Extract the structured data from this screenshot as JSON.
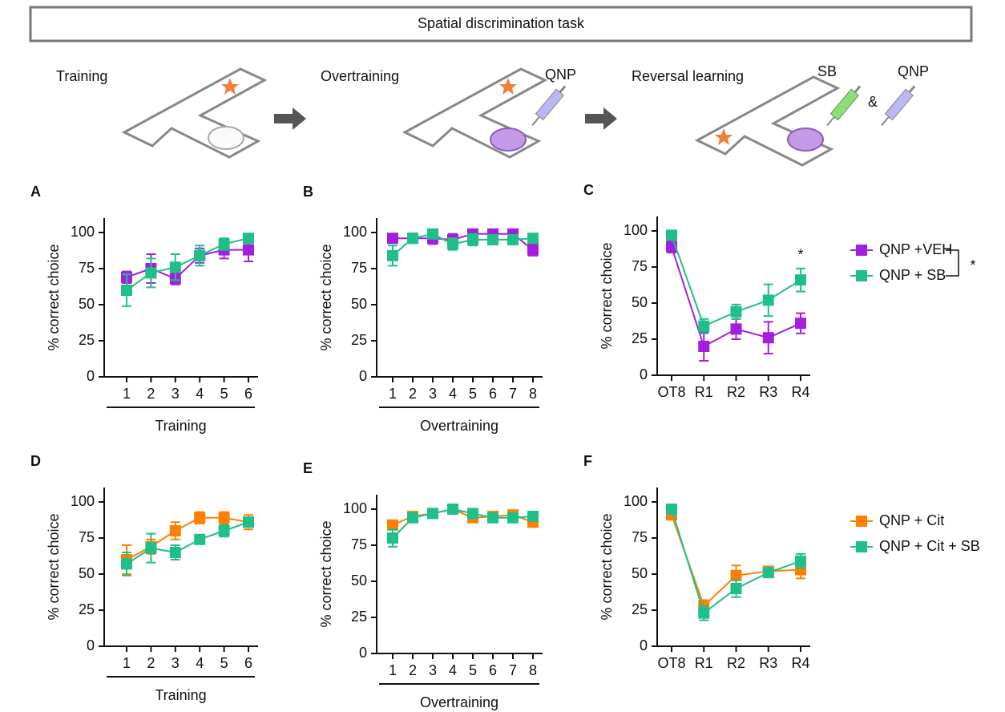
{
  "schematic": {
    "title": "Spatial discrimination task",
    "stages": [
      {
        "label": "Training"
      },
      {
        "label": "Overtraining",
        "drug": "QNP"
      },
      {
        "label": "Reversal learning",
        "drugs": [
          "SB",
          "&",
          "QNP"
        ]
      }
    ]
  },
  "chart_data": [
    {
      "type": "line",
      "panel": "A",
      "ylabel": "% correct choice",
      "xlabel": "Training",
      "categories": [
        "1",
        "2",
        "3",
        "4",
        "5",
        "6"
      ],
      "ylim": [
        0,
        110
      ],
      "yticks": [
        0,
        25,
        50,
        75,
        100
      ],
      "series": [
        {
          "color": "#a21fe0",
          "values": [
            69,
            75,
            68,
            84,
            88,
            88
          ],
          "errors": [
            4,
            10,
            4,
            5,
            6,
            8
          ]
        },
        {
          "color": "#1fbf8a",
          "values": [
            60,
            72,
            76,
            84,
            92,
            96
          ],
          "errors": [
            11,
            10,
            9,
            7,
            4,
            3
          ]
        }
      ]
    },
    {
      "type": "line",
      "panel": "B",
      "ylabel": "% correct choice",
      "xlabel": "Overtraining",
      "categories": [
        "1",
        "2",
        "3",
        "4",
        "5",
        "6",
        "7",
        "8"
      ],
      "ylim": [
        0,
        110
      ],
      "yticks": [
        0,
        25,
        50,
        75,
        100
      ],
      "series": [
        {
          "color": "#a21fe0",
          "values": [
            96,
            96,
            96,
            95,
            99,
            99,
            99,
            88
          ],
          "errors": [
            3,
            3,
            4,
            4,
            3,
            3,
            3,
            4
          ]
        },
        {
          "color": "#1fbf8a",
          "values": [
            84,
            96,
            99,
            92,
            95,
            95,
            95,
            96
          ],
          "errors": [
            7,
            3,
            3,
            4,
            4,
            3,
            3,
            3
          ]
        }
      ]
    },
    {
      "type": "line",
      "panel": "C",
      "ylabel": "% correct choice",
      "categories": [
        "OT8",
        "R1",
        "R2",
        "R3",
        "R4"
      ],
      "ylim": [
        0,
        110
      ],
      "yticks": [
        0,
        25,
        50,
        75,
        100
      ],
      "annotation": "*",
      "legend": "right",
      "legend_annotation": "*",
      "series": [
        {
          "name": "QNP +VEH",
          "color": "#a21fe0",
          "values": [
            89,
            20,
            32,
            26,
            36
          ],
          "errors": [
            4,
            10,
            7,
            11,
            7
          ]
        },
        {
          "name": "QNP + SB",
          "color": "#1fbf8a",
          "values": [
            97,
            34,
            44,
            52,
            66
          ],
          "errors": [
            3,
            5,
            5,
            11,
            8
          ]
        }
      ]
    },
    {
      "type": "line",
      "panel": "D",
      "ylabel": "% correct choice",
      "xlabel": "Training",
      "categories": [
        "1",
        "2",
        "3",
        "4",
        "5",
        "6"
      ],
      "ylim": [
        0,
        110
      ],
      "yticks": [
        0,
        25,
        50,
        75,
        100
      ],
      "series": [
        {
          "color": "#ff8000",
          "values": [
            60,
            69,
            80,
            89,
            89,
            86
          ],
          "errors": [
            10,
            5,
            6,
            4,
            4,
            5
          ]
        },
        {
          "color": "#1fbf8a",
          "values": [
            57,
            68,
            65,
            74,
            80,
            86
          ],
          "errors": [
            8,
            10,
            5,
            3,
            4,
            3
          ]
        }
      ]
    },
    {
      "type": "line",
      "panel": "E",
      "ylabel": "% correct choice",
      "xlabel": "Overtraining",
      "categories": [
        "1",
        "2",
        "3",
        "4",
        "5",
        "6",
        "7",
        "8"
      ],
      "ylim": [
        0,
        110
      ],
      "yticks": [
        0,
        25,
        50,
        75,
        100
      ],
      "series": [
        {
          "color": "#ff8000",
          "values": [
            89,
            95,
            97,
            100,
            94,
            95,
            96,
            91
          ],
          "errors": [
            3,
            2,
            2,
            1,
            3,
            3,
            2,
            3
          ]
        },
        {
          "color": "#1fbf8a",
          "values": [
            80,
            94,
            97,
            100,
            97,
            94,
            94,
            95
          ],
          "errors": [
            6,
            3,
            2,
            1,
            2,
            3,
            3,
            3
          ]
        }
      ]
    },
    {
      "type": "line",
      "panel": "F",
      "ylabel": "% correct choice",
      "categories": [
        "OT8",
        "R1",
        "R2",
        "R3",
        "R4"
      ],
      "ylim": [
        0,
        110
      ],
      "yticks": [
        0,
        25,
        50,
        75,
        100
      ],
      "legend": "right",
      "series": [
        {
          "name": "QNP + Cit",
          "color": "#ff8000",
          "values": [
            91,
            28,
            49,
            52,
            53
          ],
          "errors": [
            3,
            4,
            7,
            3,
            6
          ]
        },
        {
          "name": "QNP + Cit + SB",
          "color": "#1fbf8a",
          "values": [
            95,
            23,
            40,
            51,
            59
          ],
          "errors": [
            3,
            5,
            6,
            3,
            5
          ]
        }
      ]
    }
  ]
}
